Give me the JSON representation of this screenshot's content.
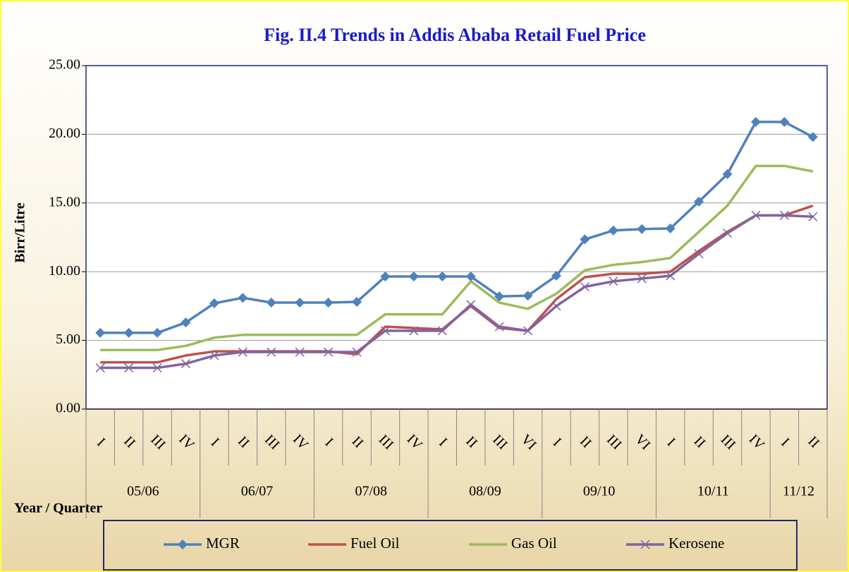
{
  "chart_data": {
    "type": "line",
    "title": "Fig. II.4 Trends in Addis Ababa Retail Fuel Price",
    "y_label": "Birr/Litre",
    "x_label": "Year / Quarter",
    "category_groups": [
      {
        "name": "05/06",
        "quarters": [
          "I",
          "II",
          "III",
          "IV"
        ]
      },
      {
        "name": "06/07",
        "quarters": [
          "I",
          "II",
          "III",
          "IV"
        ]
      },
      {
        "name": "07/08",
        "quarters": [
          "I",
          "II",
          "III",
          "IV"
        ]
      },
      {
        "name": "08/09",
        "quarters": [
          "I",
          "II",
          "III",
          "VI"
        ]
      },
      {
        "name": "09/10",
        "quarters": [
          "I",
          "II",
          "III",
          "VI"
        ]
      },
      {
        "name": "10/11",
        "quarters": [
          "I",
          "II",
          "III",
          "IV"
        ]
      },
      {
        "name": "11/12",
        "quarters": [
          "I",
          "II"
        ]
      }
    ],
    "series": [
      {
        "name": "MGR",
        "color": "#4f81bd",
        "marker": "diamond",
        "values": [
          5.55,
          5.55,
          5.55,
          6.3,
          7.7,
          8.1,
          7.75,
          7.75,
          7.75,
          7.8,
          9.65,
          9.65,
          9.65,
          9.65,
          8.2,
          8.25,
          9.7,
          12.35,
          13.0,
          13.1,
          13.15,
          15.1,
          17.1,
          20.9,
          20.9,
          19.8
        ]
      },
      {
        "name": "Fuel Oil",
        "color": "#c0504d",
        "marker": "none",
        "values": [
          3.4,
          3.4,
          3.4,
          3.9,
          4.2,
          4.2,
          4.2,
          4.2,
          4.2,
          4.0,
          6.0,
          5.9,
          5.8,
          7.5,
          5.9,
          5.7,
          8.0,
          9.6,
          9.85,
          9.85,
          10.0,
          11.5,
          12.9,
          14.1,
          14.1,
          14.8
        ]
      },
      {
        "name": "Gas Oil",
        "color": "#9bbb59",
        "marker": "none",
        "values": [
          4.3,
          4.3,
          4.3,
          4.6,
          5.2,
          5.4,
          5.4,
          5.4,
          5.4,
          5.4,
          6.9,
          6.9,
          6.9,
          9.3,
          7.75,
          7.3,
          8.4,
          10.1,
          10.5,
          10.7,
          11.0,
          12.9,
          14.8,
          17.7,
          17.7,
          17.3
        ]
      },
      {
        "name": "Kerosene",
        "color": "#8064a2",
        "marker": "x",
        "values": [
          3.0,
          3.0,
          3.0,
          3.3,
          3.9,
          4.15,
          4.15,
          4.15,
          4.15,
          4.15,
          5.7,
          5.7,
          5.7,
          7.6,
          6.0,
          5.7,
          7.5,
          8.9,
          9.3,
          9.5,
          9.7,
          11.3,
          12.8,
          14.1,
          14.1,
          14.0
        ]
      }
    ],
    "ylim": [
      0,
      25
    ],
    "yticks": [
      {
        "value": 0,
        "label": "0.00"
      },
      {
        "value": 5,
        "label": "5.00"
      },
      {
        "value": 10,
        "label": "10.00"
      },
      {
        "value": 15,
        "label": "15.00"
      },
      {
        "value": 20,
        "label": "20.00"
      },
      {
        "value": 25,
        "label": "25.00"
      }
    ],
    "grid": true
  }
}
